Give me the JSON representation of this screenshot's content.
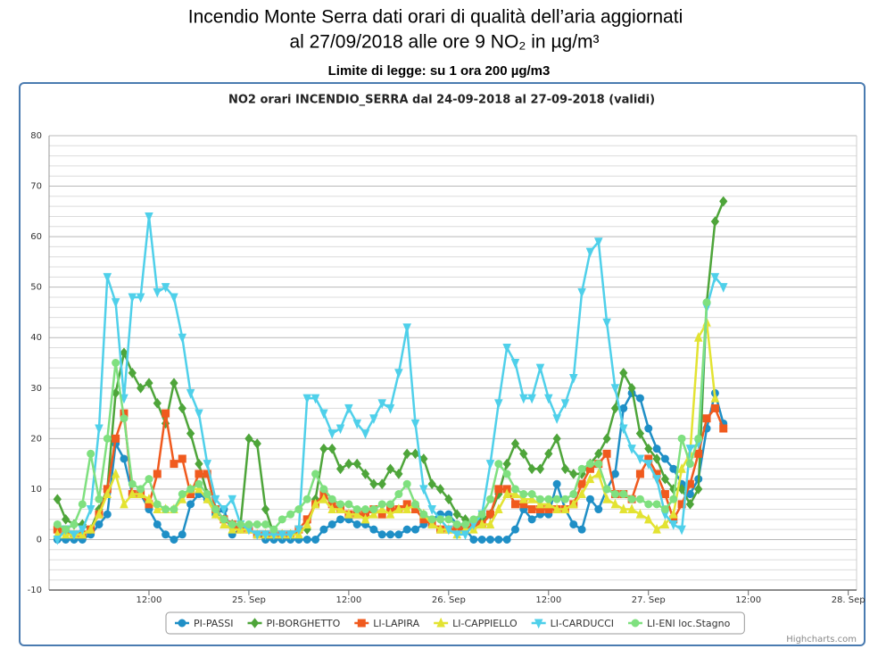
{
  "header": {
    "title": "Incendio Monte Serra dati orari di qualità dell’aria aggiornati",
    "subtitle": "al 27/09/2018 alle ore 9 NO₂          in µg/m³",
    "limit": "Limite di legge: su 1 ora 200 µg/m3"
  },
  "chart_data": {
    "type": "line",
    "title": "NO2 orari INCENDIO_SERRA dal 24-09-2018 al 27-09-2018 (validi)",
    "credits": "Highcharts.com",
    "x": [
      1,
      2,
      3,
      4,
      5,
      6,
      7,
      8,
      9,
      10,
      11,
      12,
      13,
      14,
      15,
      16,
      17,
      18,
      19,
      20,
      21,
      22,
      23,
      24,
      25,
      26,
      27,
      28,
      29,
      30,
      31,
      32,
      33,
      34,
      35,
      36,
      37,
      38,
      39,
      40,
      41,
      42,
      43,
      44,
      45,
      46,
      47,
      48,
      49,
      50,
      51,
      52,
      53,
      54,
      55,
      56,
      57,
      58,
      59,
      60,
      61,
      62,
      63,
      64,
      65,
      66,
      67,
      68,
      69,
      70,
      71,
      72,
      73,
      74,
      75,
      76,
      77,
      78,
      79,
      80,
      81
    ],
    "xlim": [
      0,
      97
    ],
    "xticks": [
      {
        "value": 12,
        "label": "12:00"
      },
      {
        "value": 24,
        "label": "25. Sep"
      },
      {
        "value": 36,
        "label": "12:00"
      },
      {
        "value": 48,
        "label": "26. Sep"
      },
      {
        "value": 60,
        "label": "12:00"
      },
      {
        "value": 72,
        "label": "27. Sep"
      },
      {
        "value": 84,
        "label": "12:00"
      },
      {
        "value": 96,
        "label": "28. Sep"
      }
    ],
    "ylim": [
      -10,
      80
    ],
    "yticks": [
      -10,
      0,
      10,
      20,
      30,
      40,
      50,
      60,
      70,
      80
    ],
    "grid": true,
    "minor_grid": true,
    "legend": "bottom",
    "series": [
      {
        "name": "PI-PASSI",
        "color": "#1f8fc6",
        "marker": "circle",
        "values": [
          0,
          0,
          0,
          0,
          1,
          3,
          5,
          19,
          16,
          9,
          9,
          6,
          3,
          1,
          0,
          1,
          7,
          9,
          8,
          5,
          6,
          1,
          2,
          2,
          1,
          0,
          0,
          0,
          0,
          0,
          0,
          0,
          2,
          3,
          4,
          4,
          3,
          3,
          2,
          1,
          1,
          1,
          2,
          2,
          3,
          4,
          5,
          5,
          3,
          2,
          0,
          0,
          0,
          0,
          0,
          2,
          6,
          4,
          5,
          5,
          11,
          6,
          3,
          2,
          8,
          6,
          10,
          13,
          26,
          29,
          28,
          22,
          18,
          16,
          14,
          11,
          9,
          12,
          22,
          29,
          23
        ]
      },
      {
        "name": "PI-BORGHETTO",
        "color": "#4ea53a",
        "marker": "diamond",
        "values": [
          8,
          4,
          3,
          3,
          2,
          6,
          10,
          29,
          37,
          33,
          30,
          31,
          27,
          23,
          31,
          26,
          21,
          15,
          9,
          6,
          4,
          3,
          3,
          20,
          19,
          6,
          1,
          1,
          1,
          2,
          2,
          8,
          18,
          18,
          14,
          15,
          15,
          13,
          11,
          11,
          14,
          13,
          17,
          17,
          16,
          11,
          10,
          8,
          5,
          4,
          3,
          4,
          5,
          9,
          15,
          19,
          17,
          14,
          14,
          17,
          20,
          14,
          13,
          13,
          15,
          17,
          20,
          26,
          33,
          30,
          21,
          18,
          16,
          12,
          10,
          10,
          7,
          10,
          47,
          63,
          67
        ]
      },
      {
        "name": "LI-LAPIRA",
        "color": "#f05a1e",
        "marker": "square",
        "values": [
          2,
          2,
          1,
          1,
          2,
          5,
          10,
          20,
          25,
          9,
          9,
          7,
          13,
          25,
          15,
          16,
          9,
          13,
          13,
          6,
          4,
          3,
          2,
          2,
          1,
          1,
          1,
          1,
          1,
          2,
          4,
          7,
          9,
          7,
          6,
          5,
          5,
          5,
          6,
          5,
          6,
          6,
          7,
          6,
          4,
          3,
          2,
          2,
          2,
          2,
          3,
          3,
          5,
          10,
          10,
          7,
          7,
          6,
          6,
          6,
          6,
          6,
          7,
          11,
          14,
          15,
          17,
          9,
          9,
          8,
          13,
          16,
          13,
          9,
          4,
          7,
          11,
          17,
          24,
          26,
          22
        ]
      },
      {
        "name": "LI-CAPPIELLO",
        "color": "#e3e332",
        "marker": "triangle",
        "values": [
          1,
          1,
          1,
          1,
          2,
          5,
          9,
          13,
          7,
          9,
          9,
          8,
          6,
          6,
          6,
          8,
          10,
          10,
          8,
          5,
          3,
          2,
          2,
          2,
          1,
          1,
          1,
          1,
          1,
          1,
          3,
          7,
          8,
          6,
          6,
          5,
          5,
          4,
          5,
          6,
          5,
          6,
          6,
          7,
          5,
          3,
          2,
          2,
          1,
          2,
          2,
          3,
          3,
          6,
          9,
          9,
          8,
          8,
          7,
          7,
          6,
          6,
          7,
          9,
          12,
          13,
          8,
          7,
          6,
          6,
          5,
          4,
          2,
          3,
          5,
          14,
          17,
          40,
          43,
          28,
          null
        ]
      },
      {
        "name": "LI-CARDUCCI",
        "color": "#4fd0ea",
        "marker": "triangle-down",
        "values": [
          0,
          2,
          1,
          2,
          6,
          22,
          52,
          47,
          28,
          48,
          48,
          64,
          49,
          50,
          48,
          40,
          29,
          25,
          15,
          8,
          6,
          8,
          3,
          2,
          1,
          1,
          1,
          1,
          1,
          2,
          28,
          28,
          25,
          21,
          22,
          26,
          23,
          21,
          24,
          27,
          26,
          33,
          42,
          23,
          10,
          6,
          4,
          2,
          1,
          1,
          3,
          5,
          15,
          27,
          38,
          35,
          28,
          28,
          34,
          28,
          24,
          27,
          32,
          49,
          57,
          59,
          43,
          30,
          22,
          18,
          16,
          15,
          12,
          5,
          3,
          2,
          18,
          19,
          46,
          52,
          50
        ]
      },
      {
        "name": "LI-ENI loc.Stagno",
        "color": "#7fe07f",
        "marker": "circle",
        "values": [
          3,
          2,
          3,
          7,
          17,
          8,
          20,
          35,
          24,
          11,
          10,
          12,
          7,
          6,
          6,
          9,
          10,
          11,
          9,
          6,
          4,
          3,
          3,
          3,
          3,
          3,
          2,
          4,
          5,
          6,
          8,
          13,
          10,
          8,
          7,
          7,
          6,
          6,
          6,
          7,
          7,
          9,
          11,
          7,
          5,
          4,
          4,
          4,
          3,
          3,
          4,
          5,
          8,
          15,
          13,
          10,
          9,
          9,
          8,
          8,
          8,
          8,
          9,
          14,
          15,
          15,
          10,
          9,
          9,
          8,
          8,
          7,
          7,
          6,
          8,
          20,
          15,
          20,
          47,
          null,
          null
        ]
      }
    ]
  }
}
